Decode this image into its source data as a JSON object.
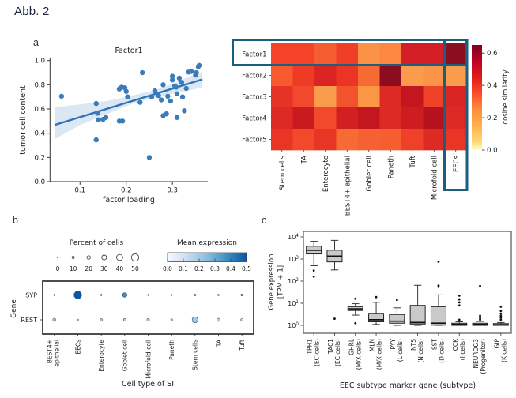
{
  "page": {
    "title": "Abb. 2",
    "background": "#ffffff"
  },
  "panels": {
    "a_label": "a",
    "b_label": "b",
    "c_label": "c"
  },
  "chart_data": [
    {
      "id": "scatter_factor1",
      "type": "scatter",
      "title": "Factor1",
      "xlabel": "factor loading",
      "ylabel": "tumor cell content",
      "xlim": [
        0.035,
        0.375
      ],
      "ylim": [
        0.0,
        1.0
      ],
      "xticks": [
        "0.1",
        "0.2",
        "0.3"
      ],
      "yticks": [
        "0.0",
        "0.2",
        "0.4",
        "0.6",
        "0.8",
        "1.0"
      ],
      "point_color": "#3b7cb8",
      "line_color": "#2f74b3",
      "band_color": "#cfe0f0",
      "points": [
        [
          0.06,
          0.705
        ],
        [
          0.135,
          0.645
        ],
        [
          0.138,
          0.565
        ],
        [
          0.14,
          0.51
        ],
        [
          0.15,
          0.515
        ],
        [
          0.156,
          0.53
        ],
        [
          0.135,
          0.345
        ],
        [
          0.185,
          0.765
        ],
        [
          0.19,
          0.78
        ],
        [
          0.197,
          0.775
        ],
        [
          0.2,
          0.745
        ],
        [
          0.203,
          0.7
        ],
        [
          0.185,
          0.5
        ],
        [
          0.192,
          0.5
        ],
        [
          0.235,
          0.9
        ],
        [
          0.23,
          0.655
        ],
        [
          0.25,
          0.2
        ],
        [
          0.255,
          0.7
        ],
        [
          0.262,
          0.75
        ],
        [
          0.27,
          0.71
        ],
        [
          0.276,
          0.675
        ],
        [
          0.28,
          0.8
        ],
        [
          0.28,
          0.545
        ],
        [
          0.287,
          0.56
        ],
        [
          0.29,
          0.705
        ],
        [
          0.296,
          0.665
        ],
        [
          0.3,
          0.87
        ],
        [
          0.3,
          0.84
        ],
        [
          0.305,
          0.79
        ],
        [
          0.308,
          0.78
        ],
        [
          0.31,
          0.725
        ],
        [
          0.31,
          0.53
        ],
        [
          0.315,
          0.855
        ],
        [
          0.32,
          0.82
        ],
        [
          0.322,
          0.7
        ],
        [
          0.326,
          0.585
        ],
        [
          0.33,
          0.77
        ],
        [
          0.335,
          0.905
        ],
        [
          0.341,
          0.91
        ],
        [
          0.35,
          0.88
        ],
        [
          0.352,
          0.9
        ],
        [
          0.356,
          0.95
        ],
        [
          0.358,
          0.96
        ]
      ],
      "regression_line": [
        [
          0.045,
          0.468
        ],
        [
          0.365,
          0.845
        ]
      ],
      "band_upper": [
        [
          0.045,
          0.615
        ],
        [
          0.1,
          0.638
        ],
        [
          0.16,
          0.668
        ],
        [
          0.21,
          0.708
        ],
        [
          0.27,
          0.766
        ],
        [
          0.365,
          0.908
        ]
      ],
      "band_lower": [
        [
          0.045,
          0.35
        ],
        [
          0.1,
          0.468
        ],
        [
          0.16,
          0.56
        ],
        [
          0.21,
          0.64
        ],
        [
          0.27,
          0.7
        ],
        [
          0.365,
          0.778
        ]
      ]
    },
    {
      "id": "heatmap_cosine_similarity",
      "type": "heatmap",
      "rows": [
        "Factor1",
        "Factor2",
        "Factor3",
        "Factor4",
        "Factor5"
      ],
      "cols": [
        "Stem cells",
        "TA",
        "Enterocyte",
        "BEST4+ epithelial",
        "Goblet cell",
        "Paneth",
        "Tuft",
        "Microfold cell",
        "EECs"
      ],
      "values": [
        [
          0.44,
          0.44,
          0.41,
          0.44,
          0.34,
          0.35,
          0.51,
          0.51,
          0.64
        ],
        [
          0.41,
          0.45,
          0.49,
          0.46,
          0.39,
          0.63,
          0.32,
          0.33,
          0.32
        ],
        [
          0.46,
          0.44,
          0.32,
          0.43,
          0.33,
          0.48,
          0.53,
          0.45,
          0.49
        ],
        [
          0.48,
          0.52,
          0.44,
          0.5,
          0.53,
          0.48,
          0.51,
          0.55,
          0.48
        ],
        [
          0.46,
          0.44,
          0.46,
          0.39,
          0.4,
          0.4,
          0.45,
          0.48,
          0.46
        ]
      ],
      "cell_colors": [
        [
          "#f44329",
          "#f44329",
          "#f65e31",
          "#f03e28",
          "#fc9245",
          "#fb883e",
          "#d51f26",
          "#d51f26",
          "#8b0d20"
        ],
        [
          "#f75a2e",
          "#ef3b26",
          "#da2523",
          "#ea3526",
          "#f76a33",
          "#8b0d20",
          "#fb9c4c",
          "#fa9449",
          "#fb9c4c"
        ],
        [
          "#e73325",
          "#f2482b",
          "#fb9c4c",
          "#f2532d",
          "#f99746",
          "#dd2a24",
          "#c3161f",
          "#ee4128",
          "#da2523"
        ],
        [
          "#dd2a24",
          "#c91a20",
          "#f2482b",
          "#d22022",
          "#c3161f",
          "#dd2a24",
          "#ce1d21",
          "#b5121d",
          "#dd2a24"
        ],
        [
          "#e93526",
          "#f2482b",
          "#e93526",
          "#f66a33",
          "#f66133",
          "#f65e2f",
          "#ee4128",
          "#dd2a24",
          "#e93526"
        ]
      ],
      "colorbar": {
        "label": "cosine similarity",
        "vmin": 0.0,
        "vmax": 0.65,
        "ticks": [
          {
            "v": 0.6,
            "label": "0.6"
          },
          {
            "v": 0.4,
            "label": "0.4"
          },
          {
            "v": 0.2,
            "label": "0.2"
          },
          {
            "v": 0.0,
            "label": "0.0"
          }
        ],
        "stops": [
          {
            "t": 0,
            "c": "#800026"
          },
          {
            "t": 0.154,
            "c": "#bd0026"
          },
          {
            "t": 0.308,
            "c": "#e31a1c"
          },
          {
            "t": 0.462,
            "c": "#fc4e2a"
          },
          {
            "t": 0.615,
            "c": "#fd8d3c"
          },
          {
            "t": 0.769,
            "c": "#feb24c"
          },
          {
            "t": 0.923,
            "c": "#fed976"
          },
          {
            "t": 1,
            "c": "#ffffcc"
          }
        ]
      },
      "highlight_color": "#1b5e80",
      "highlights": [
        "factor1-row",
        "eecs-column"
      ]
    },
    {
      "id": "dotplot_cell_type_si",
      "type": "dotplot",
      "ylabel": "Gene",
      "xlabel": "Cell type of SI",
      "genes": [
        "SYP",
        "REST"
      ],
      "cell_types": [
        [
          "BEST4+",
          "epithelial"
        ],
        [
          "EECs"
        ],
        [
          "Enterocyte"
        ],
        [
          "Goblet cell"
        ],
        [
          "Microfold cell"
        ],
        [
          "Paneth"
        ],
        [
          "Stem cells"
        ],
        [
          "TA"
        ],
        [
          "Tuft"
        ]
      ],
      "percent": [
        [
          4,
          52,
          4,
          27,
          2,
          2,
          6,
          4,
          8
        ],
        [
          17,
          4,
          10,
          12,
          12,
          7,
          38,
          17,
          11
        ]
      ],
      "expression": [
        [
          0.2,
          0.5,
          0.15,
          0.38,
          0.1,
          0.1,
          0.15,
          0.12,
          0.25
        ],
        [
          0.18,
          0.1,
          0.14,
          0.16,
          0.15,
          0.12,
          0.2,
          0.18,
          0.15
        ]
      ],
      "size_legend": {
        "title": "Percent of cells",
        "values": [
          "0",
          "10",
          "20",
          "30",
          "40",
          "50"
        ]
      },
      "color_legend": {
        "title": "Mean expression",
        "vmin": 0.0,
        "vmax": 0.5,
        "ticks": [
          "0.0",
          "0.1",
          "0.2",
          "0.3",
          "0.4",
          "0.5"
        ],
        "stops": [
          {
            "t": 0,
            "c": "#f7fbff"
          },
          {
            "t": 0.25,
            "c": "#c9dcef"
          },
          {
            "t": 0.5,
            "c": "#8abfdd"
          },
          {
            "t": 0.75,
            "c": "#3e8ec4"
          },
          {
            "t": 1,
            "c": "#0a58a2"
          }
        ]
      },
      "dot_edge_color": "#31506b"
    },
    {
      "id": "boxplot_eec_markers",
      "type": "box",
      "ylabel_lines": [
        "Gene expression",
        "[TPM + 1]"
      ],
      "xlabel": "EEC subtype marker gene (subtype)",
      "yscale": "log",
      "yticks_exp": [
        0,
        1,
        2,
        3,
        4
      ],
      "box_fill": "#c9c9c9",
      "categories": [
        {
          "gene": "TPH1",
          "subtype": "(EC cells)",
          "whislo": 500,
          "q1": 1700,
          "med": 2500,
          "q3": 3800,
          "whishi": 6300,
          "outliers": [
            300,
            160
          ]
        },
        {
          "gene": "TAC1",
          "subtype": "(EC cells)",
          "whislo": 320,
          "q1": 740,
          "med": 1350,
          "q3": 2500,
          "whishi": 7000,
          "outliers": [
            2.0
          ]
        },
        {
          "gene": "GHRL",
          "subtype": "(M/X cells)",
          "whislo": 2.9,
          "q1": 4.7,
          "med": 5.6,
          "q3": 7.0,
          "whishi": 9.5,
          "outliers": [
            16,
            1.25
          ]
        },
        {
          "gene": "MLN",
          "subtype": "(M/X cells)",
          "whislo": 1.1,
          "q1": 1.45,
          "med": 1.8,
          "q3": 3.5,
          "whishi": 11,
          "outliers": [
            19
          ]
        },
        {
          "gene": "PYY",
          "subtype": "(L cells)",
          "whislo": 1.0,
          "q1": 1.25,
          "med": 1.55,
          "q3": 3.1,
          "whishi": 6.2,
          "outliers": [
            14
          ]
        },
        {
          "gene": "NTS",
          "subtype": "(N cells)",
          "whislo": 1.0,
          "q1": 1.15,
          "med": 1.35,
          "q3": 8.0,
          "whishi": 65,
          "outliers": []
        },
        {
          "gene": "SST",
          "subtype": "(D cells)",
          "whislo": 1.0,
          "q1": 1.02,
          "med": 1.25,
          "q3": 7.0,
          "whishi": 24,
          "outliers": [
            55,
            63,
            750
          ]
        },
        {
          "gene": "CCK",
          "subtype": "(I cells)",
          "whislo": 1.0,
          "q1": 1.0,
          "med": 1.1,
          "q3": 1.25,
          "whishi": 1.45,
          "outliers": [
            1.8,
            8,
            11,
            15,
            22
          ]
        },
        {
          "gene": "NEUROG3",
          "subtype": "(Progenitor)",
          "whislo": 1.0,
          "q1": 1.0,
          "med": 1.1,
          "q3": 1.25,
          "whishi": 1.5,
          "outliers": [
            1.6,
            1.9,
            2.2,
            2.7,
            60
          ]
        },
        {
          "gene": "GIP",
          "subtype": "(K cells)",
          "whislo": 1.0,
          "q1": 1.0,
          "med": 1.05,
          "q3": 1.2,
          "whishi": 1.35,
          "outliers": [
            1.8,
            2.2,
            2.7,
            3.4,
            4.5,
            7.0
          ]
        }
      ]
    }
  ]
}
